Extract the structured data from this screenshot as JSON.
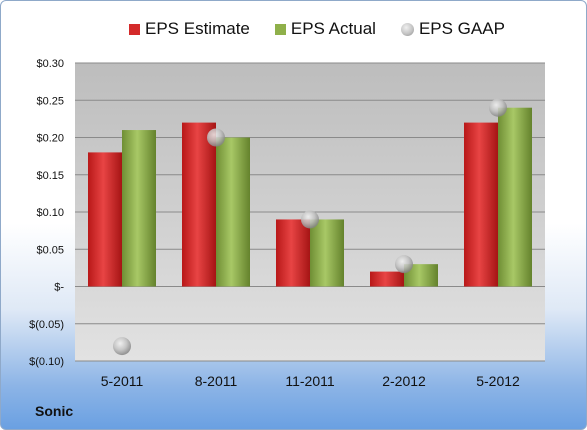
{
  "company": "Sonic",
  "chart_data": {
    "type": "bar",
    "categories": [
      "5-2011",
      "8-2011",
      "11-2011",
      "2-2012",
      "5-2012"
    ],
    "series": [
      {
        "name": "EPS Estimate",
        "kind": "bar",
        "color": "#d42a2a",
        "values": [
          0.18,
          0.22,
          0.09,
          0.02,
          0.22
        ]
      },
      {
        "name": "EPS Actual",
        "kind": "bar",
        "color": "#8fb04a",
        "values": [
          0.21,
          0.2,
          0.09,
          0.03,
          0.24
        ]
      },
      {
        "name": "EPS GAAP",
        "kind": "marker",
        "color": "#b5b5b5",
        "values": [
          -0.08,
          0.2,
          0.09,
          0.03,
          0.24
        ]
      }
    ],
    "ylim": [
      -0.1,
      0.3
    ],
    "yticks": [
      0.3,
      0.25,
      0.2,
      0.15,
      0.1,
      0.05,
      0,
      -0.05,
      -0.1
    ],
    "ytick_labels": [
      "$0.30",
      "$0.25",
      "$0.20",
      "$0.15",
      "$0.10",
      "$0.05",
      "$-",
      "$(0.05)",
      "$(0.10)"
    ],
    "grid": true,
    "legend_position": "top"
  }
}
